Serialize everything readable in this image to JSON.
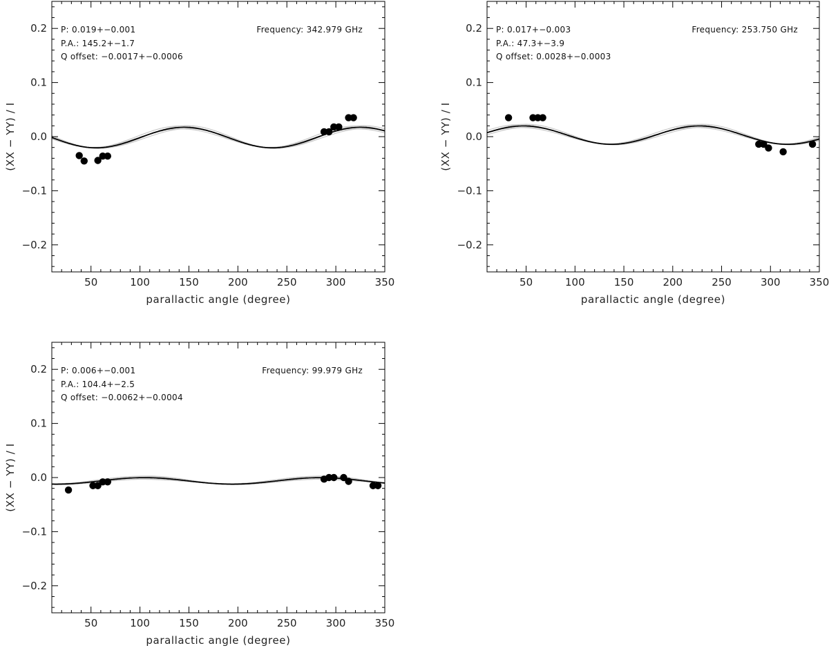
{
  "chart_data": [
    {
      "type": "scatter",
      "xlabel": "parallactic angle (degree)",
      "ylabel": "(XX − YY) / I",
      "xlim": [
        10,
        350
      ],
      "ylim": [
        -0.25,
        0.25
      ],
      "xticks": [
        50,
        100,
        150,
        200,
        250,
        300,
        350
      ],
      "yticks": [
        -0.2,
        -0.1,
        0.0,
        0.1,
        0.2
      ],
      "xtick_labels": [
        "50",
        "100",
        "150",
        "200",
        "250",
        "300",
        "350"
      ],
      "ytick_labels": [
        "−0.2",
        "−0.1",
        "0.0",
        "0.1",
        "0.2"
      ],
      "annotations": {
        "p": "P: 0.019+−0.001",
        "pa": "P.A.: 145.2+−1.7",
        "q_offset": "Q offset: −0.0017+−0.0006",
        "frequency": "Frequency: 342.979 GHz"
      },
      "model": {
        "P": 0.019,
        "PA": 145.2,
        "Q_offset": -0.0017
      },
      "series": [
        {
          "name": "measurements",
          "x": [
            38,
            43,
            57,
            62,
            67,
            288,
            293,
            298,
            303,
            313,
            318
          ],
          "y": [
            -0.035,
            -0.045,
            -0.044,
            -0.036,
            -0.036,
            0.009,
            0.009,
            0.018,
            0.018,
            0.035,
            0.035
          ]
        }
      ]
    },
    {
      "type": "scatter",
      "xlabel": "parallactic angle (degree)",
      "ylabel": "(XX − YY) / I",
      "xlim": [
        10,
        350
      ],
      "ylim": [
        -0.25,
        0.25
      ],
      "xticks": [
        50,
        100,
        150,
        200,
        250,
        300,
        350
      ],
      "yticks": [
        -0.2,
        -0.1,
        0.0,
        0.1,
        0.2
      ],
      "xtick_labels": [
        "50",
        "100",
        "150",
        "200",
        "250",
        "300",
        "350"
      ],
      "ytick_labels": [
        "−0.2",
        "−0.1",
        "0.0",
        "0.1",
        "0.2"
      ],
      "annotations": {
        "p": "P: 0.017+−0.003",
        "pa": "P.A.: 47.3+−3.9",
        "q_offset": "Q offset: 0.0028+−0.0003",
        "frequency": "Frequency: 253.750 GHz"
      },
      "model": {
        "P": 0.017,
        "PA": 47.3,
        "Q_offset": 0.0028
      },
      "series": [
        {
          "name": "measurements",
          "x": [
            32,
            57,
            62,
            67,
            288,
            293,
            298,
            313,
            343
          ],
          "y": [
            0.035,
            0.035,
            0.035,
            0.035,
            -0.014,
            -0.014,
            -0.021,
            -0.028,
            -0.014
          ]
        }
      ]
    },
    {
      "type": "scatter",
      "xlabel": "parallactic angle (degree)",
      "ylabel": "(XX − YY) / I",
      "xlim": [
        10,
        350
      ],
      "ylim": [
        -0.25,
        0.25
      ],
      "xticks": [
        50,
        100,
        150,
        200,
        250,
        300,
        350
      ],
      "yticks": [
        -0.2,
        -0.1,
        0.0,
        0.1,
        0.2
      ],
      "xtick_labels": [
        "50",
        "100",
        "150",
        "200",
        "250",
        "300",
        "350"
      ],
      "ytick_labels": [
        "−0.2",
        "−0.1",
        "0.0",
        "0.1",
        "0.2"
      ],
      "annotations": {
        "p": "P: 0.006+−0.001",
        "pa": "P.A.: 104.4+−2.5",
        "q_offset": "Q offset: −0.0062+−0.0004",
        "frequency": "Frequency:  99.979 GHz"
      },
      "model": {
        "P": 0.006,
        "PA": 104.4,
        "Q_offset": -0.0062
      },
      "series": [
        {
          "name": "measurements",
          "x": [
            27,
            52,
            57,
            62,
            67,
            288,
            293,
            298,
            308,
            313,
            338,
            343
          ],
          "y": [
            -0.023,
            -0.015,
            -0.015,
            -0.008,
            -0.008,
            -0.003,
            0.0,
            0.0,
            0.0,
            -0.007,
            -0.015,
            -0.015
          ]
        }
      ]
    }
  ]
}
